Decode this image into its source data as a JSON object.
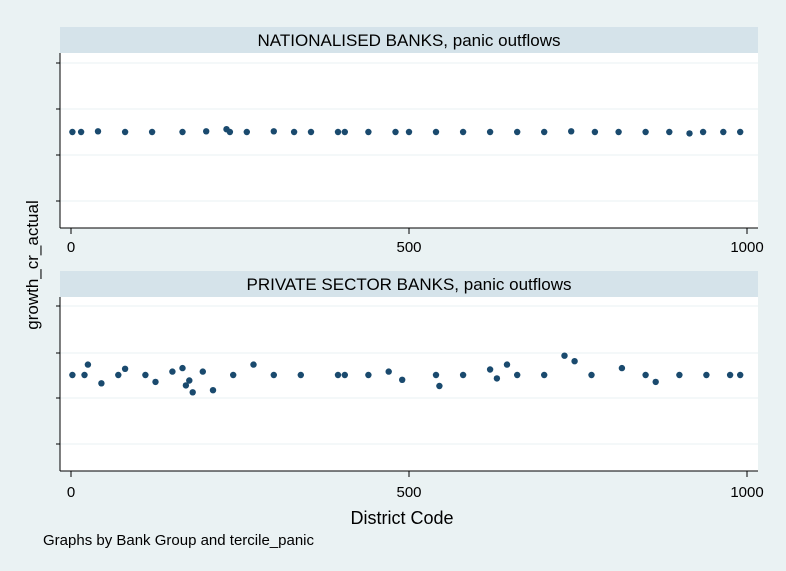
{
  "ylabel": "growth_cr_actual",
  "xlabel": "District Code",
  "note": "Graphs by Bank Group and tercile_panic",
  "colors": {
    "background": "#eaf2f3",
    "strip": "#d5e3ea",
    "marker": "#1a4a6e",
    "grid": "#eaf2f3"
  },
  "chart_data": [
    {
      "type": "scatter",
      "title": "NATIONALISED BANKS, panic outflows",
      "xlabel": "District Code",
      "ylabel": "growth_cr_actual",
      "xticks": [
        0,
        500,
        1000
      ],
      "xlim": [
        -10,
        1010
      ],
      "ylim": [
        -1,
        1
      ],
      "grid": true,
      "series": [
        {
          "points": [
            [
              2,
              0
            ],
            [
              15,
              0
            ],
            [
              40,
              0.01
            ],
            [
              80,
              0
            ],
            [
              120,
              0
            ],
            [
              165,
              0
            ],
            [
              200,
              0.01
            ],
            [
              230,
              0.04
            ],
            [
              235,
              0
            ],
            [
              260,
              0
            ],
            [
              300,
              0.01
            ],
            [
              330,
              0
            ],
            [
              355,
              0
            ],
            [
              395,
              0
            ],
            [
              405,
              0
            ],
            [
              440,
              0
            ],
            [
              480,
              0
            ],
            [
              500,
              0
            ],
            [
              540,
              0
            ],
            [
              580,
              0
            ],
            [
              620,
              0
            ],
            [
              660,
              0
            ],
            [
              700,
              0
            ],
            [
              740,
              0.01
            ],
            [
              775,
              0
            ],
            [
              810,
              0
            ],
            [
              850,
              0
            ],
            [
              885,
              0
            ],
            [
              915,
              -0.02
            ],
            [
              935,
              0
            ],
            [
              965,
              0
            ],
            [
              990,
              0
            ]
          ]
        }
      ]
    },
    {
      "type": "scatter",
      "title": "PRIVATE SECTOR BANKS, panic outflows",
      "xlabel": "District Code",
      "ylabel": "growth_cr_actual",
      "xticks": [
        0,
        500,
        1000
      ],
      "xlim": [
        -10,
        1010
      ],
      "ylim": [
        -1,
        1
      ],
      "grid": true,
      "series": [
        {
          "points": [
            [
              2,
              0
            ],
            [
              20,
              0
            ],
            [
              25,
              0.15
            ],
            [
              45,
              -0.12
            ],
            [
              70,
              0
            ],
            [
              80,
              0.09
            ],
            [
              110,
              0
            ],
            [
              125,
              -0.1
            ],
            [
              150,
              0.05
            ],
            [
              165,
              0.1
            ],
            [
              170,
              -0.15
            ],
            [
              175,
              -0.08
            ],
            [
              180,
              -0.25
            ],
            [
              195,
              0.05
            ],
            [
              210,
              -0.22
            ],
            [
              240,
              0
            ],
            [
              270,
              0.15
            ],
            [
              300,
              0
            ],
            [
              340,
              0
            ],
            [
              395,
              0
            ],
            [
              405,
              0
            ],
            [
              440,
              0
            ],
            [
              470,
              0.05
            ],
            [
              490,
              -0.07
            ],
            [
              540,
              0
            ],
            [
              545,
              -0.16
            ],
            [
              580,
              0
            ],
            [
              620,
              0.08
            ],
            [
              630,
              -0.05
            ],
            [
              645,
              0.15
            ],
            [
              660,
              0
            ],
            [
              700,
              0
            ],
            [
              730,
              0.28
            ],
            [
              745,
              0.2
            ],
            [
              770,
              0
            ],
            [
              815,
              0.1
            ],
            [
              850,
              0
            ],
            [
              865,
              -0.1
            ],
            [
              900,
              0
            ],
            [
              940,
              0
            ],
            [
              975,
              0
            ],
            [
              990,
              0
            ]
          ]
        }
      ]
    }
  ]
}
